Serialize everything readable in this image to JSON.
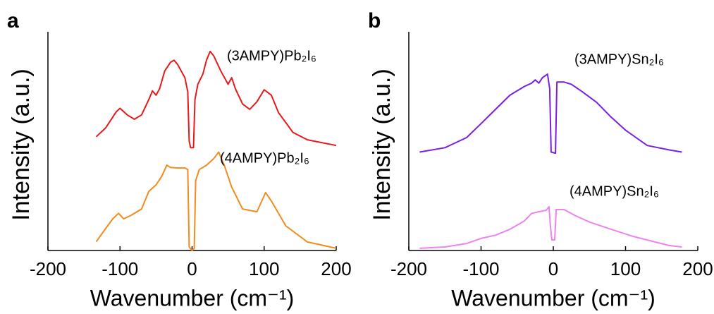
{
  "chart_data": [
    {
      "type": "line",
      "panel_label": "a",
      "x_label": "Wavenumber (cm⁻¹)",
      "y_label": "Intensity (a.u.)",
      "xlim": [
        -200,
        200
      ],
      "xticks": [
        -200,
        -100,
        0,
        100,
        200
      ],
      "ylim": [
        0,
        100
      ],
      "x": [
        -133,
        -120,
        -105,
        -100,
        -90,
        -80,
        -70,
        -60,
        -55,
        -50,
        -45,
        -38,
        -30,
        -25,
        -20,
        -10,
        -6,
        -4,
        -2,
        2,
        4,
        8,
        15,
        20,
        25,
        30,
        40,
        50,
        55,
        60,
        70,
        80,
        90,
        100,
        110,
        120,
        140,
        160,
        200
      ],
      "series": [
        {
          "name": "(3AMPY)Pb₂I₆",
          "color": "#e8191c",
          "values": [
            52,
            56,
            63.5,
            65,
            62,
            60,
            62,
            69,
            73,
            71,
            74,
            82,
            86,
            87,
            85,
            79,
            72.6,
            50,
            47,
            47,
            69,
            76,
            80.6,
            87,
            91,
            89,
            82,
            76,
            79,
            74,
            67,
            64.5,
            68,
            73.5,
            71,
            63,
            54,
            50.6,
            48
          ]
        }
      ]
    },
    {
      "type": "line",
      "x_label": "Wavenumber (cm⁻¹)",
      "xlim": [
        -200,
        200
      ],
      "ylim": [
        0,
        100
      ],
      "x": [
        -133,
        -120,
        -110,
        -102,
        -95,
        -85,
        -70,
        -60,
        -50,
        -42,
        -35,
        -30,
        -20,
        -10,
        -6,
        -4,
        0,
        3,
        5,
        10,
        20,
        30,
        37,
        45,
        55,
        70,
        90,
        102,
        110,
        130,
        160,
        200
      ],
      "series": [
        {
          "name": "(4AMPY)Pb₂I₆",
          "color": "#f28c1c",
          "values": [
            4,
            10,
            14.5,
            17,
            14.5,
            16,
            19,
            27,
            30,
            34,
            39,
            38,
            37.7,
            37.7,
            37,
            1.6,
            0,
            1,
            32,
            37,
            39,
            42,
            45,
            38.7,
            29,
            19,
            17.7,
            26.5,
            22.6,
            11.3,
            3.9,
            1
          ]
        }
      ]
    },
    {
      "type": "line",
      "panel_label": "b",
      "x_label": "Wavenumber (cm⁻¹)",
      "y_label": "Intensity (a.u.)",
      "xlim": [
        -200,
        200
      ],
      "xticks": [
        -200,
        -100,
        0,
        100,
        200
      ],
      "ylim": [
        0,
        100
      ],
      "x": [
        -185,
        -150,
        -120,
        -100,
        -80,
        -60,
        -40,
        -30,
        -25,
        -20,
        -15,
        -8,
        -5,
        -3,
        3,
        5,
        15,
        25,
        40,
        60,
        80,
        100,
        130,
        160,
        178
      ],
      "series": [
        {
          "name": "(3AMPY)Sn₂I₆",
          "color": "#7a1fe0",
          "values": [
            45,
            47,
            51.6,
            58,
            64.5,
            71,
            75,
            76.5,
            78,
            76.5,
            79,
            80.6,
            74,
            45,
            44.5,
            77,
            77,
            76,
            72.6,
            67.7,
            61,
            55,
            48,
            46,
            45
          ]
        }
      ]
    },
    {
      "type": "line",
      "xlim": [
        -200,
        200
      ],
      "ylim": [
        0,
        100
      ],
      "x": [
        -185,
        -150,
        -120,
        -100,
        -80,
        -60,
        -40,
        -30,
        -20,
        -10,
        -6,
        -4,
        -2,
        2,
        4,
        15,
        30,
        50,
        80,
        110,
        130,
        160,
        178
      ],
      "series": [
        {
          "name": "(4AMPY)Sn₂I₆",
          "color": "#ee82ee",
          "values": [
            1,
            1.6,
            3.2,
            5.5,
            7,
            9.7,
            13.5,
            17,
            17.7,
            18.4,
            20,
            11.3,
            4.8,
            4.8,
            18.7,
            18.7,
            16,
            13,
            9.7,
            6.5,
            4.8,
            2.3,
            1.6
          ]
        }
      ]
    }
  ]
}
